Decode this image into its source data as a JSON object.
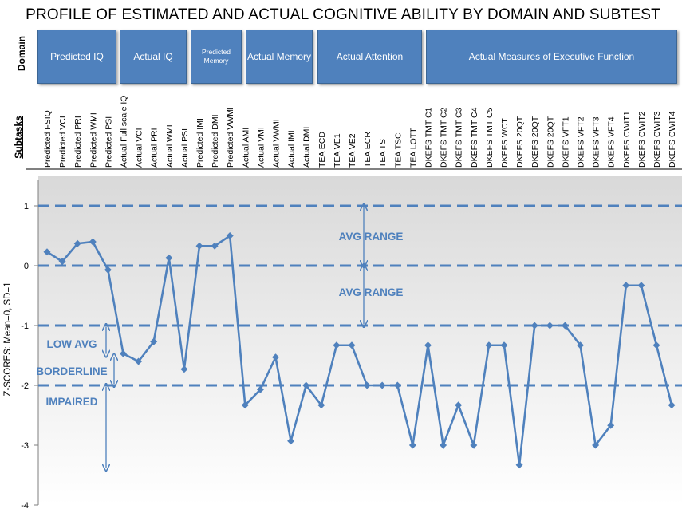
{
  "title": "PROFILE OF ESTIMATED AND ACTUAL COGNITIVE ABILITY BY DOMAIN AND SUBTEST",
  "row_labels": {
    "domain": "Domain",
    "subtasks": "Subtasks"
  },
  "domains": [
    {
      "label": "Predicted IQ",
      "size": "normal"
    },
    {
      "label": "Actual IQ",
      "size": "normal"
    },
    {
      "label": "Predicted Memory",
      "size": "small"
    },
    {
      "label": "Actual Memory",
      "size": "normal"
    },
    {
      "label": "Actual Attention",
      "size": "normal"
    },
    {
      "label": "Actual Measures of Executive Function",
      "size": "normal"
    }
  ],
  "colors": {
    "line": "#4f81bd",
    "domain_box": "#4f81bd",
    "dashed_lines": "#4f81bd",
    "annotation_text": "#4f81bd",
    "arrows": "#4f81bd",
    "band_top": "#d9d9d9",
    "band_bottom": "#ffffff"
  },
  "chart_data": {
    "type": "line",
    "ylabel": "Z-SCORES: Mean=0, SD=1",
    "ylim": [
      -4,
      1.5
    ],
    "yticks": [
      1,
      0,
      -1,
      -2,
      -3,
      -4
    ],
    "dashed_reference_lines": [
      1,
      0,
      -1,
      -2
    ],
    "categories": [
      "Predicted FSIQ",
      "Predicted VCI",
      "Predicted PRI",
      "Predicted WMI",
      "Predicted PSI",
      "Actual Full scale IQ",
      "Actual VCI",
      "Actual PRI",
      "Actual WMI",
      "Actual PSI",
      "Predicted IMI",
      "Predicted DMI",
      "Predicted VWMI",
      "Actual AMI",
      "Actual VMI",
      "Actual VWMI",
      "Actual IMI",
      "Actual DMI",
      "TEA ECD",
      "TEA VE1",
      "TEA VE2",
      "TEA ECR",
      "TEA TS",
      "TEA TSC",
      "TEA LOTT",
      "DKEFS TMT C1",
      "DKEFS TMT C2",
      "DKEFS TMT C3",
      "DKEFS TMT C4",
      "DKEFS TMT C5",
      "DKEFS WCT",
      "DKEFS 20QT",
      "DKEFS 20QT",
      "DKEFS 20QT",
      "DKEFS VFT1",
      "DKEFS VFT2",
      "DKEFS VFT3",
      "DKEFS VFT4",
      "DKEFS CWIT1",
      "DKEFS CWIT2",
      "DKEFS CWIT3",
      "DKEFS CWIT4"
    ],
    "series": [
      {
        "values": [
          0.23,
          0.07,
          0.37,
          0.4,
          -0.07,
          -1.47,
          -1.6,
          -1.27,
          0.13,
          -1.73,
          0.33,
          0.33,
          0.5,
          -2.33,
          -2.07,
          -1.53,
          -2.93,
          -2.0,
          -2.33,
          -1.33,
          -1.33,
          -2.0,
          -2.0,
          -2.0,
          -3.0,
          -1.33,
          -3.0,
          -2.33,
          -3.0,
          -1.33,
          -1.33,
          -3.33,
          -1.0,
          -1.0,
          -1.0,
          -1.33,
          -3.0,
          -2.67,
          -0.33,
          -0.33,
          -1.33,
          -2.33
        ]
      }
    ],
    "annotations": [
      {
        "text": "AVG RANGE",
        "from": 0,
        "to": 1
      },
      {
        "text": "AVG RANGE",
        "from": -1,
        "to": 0
      },
      {
        "text": "LOW AVG",
        "from": -1.5,
        "to": -1
      },
      {
        "text": "BORDERLINE",
        "from": -2,
        "to": -1.5
      },
      {
        "text": "IMPAIRED",
        "from": -3.4,
        "to": -2
      }
    ],
    "grid": false
  }
}
